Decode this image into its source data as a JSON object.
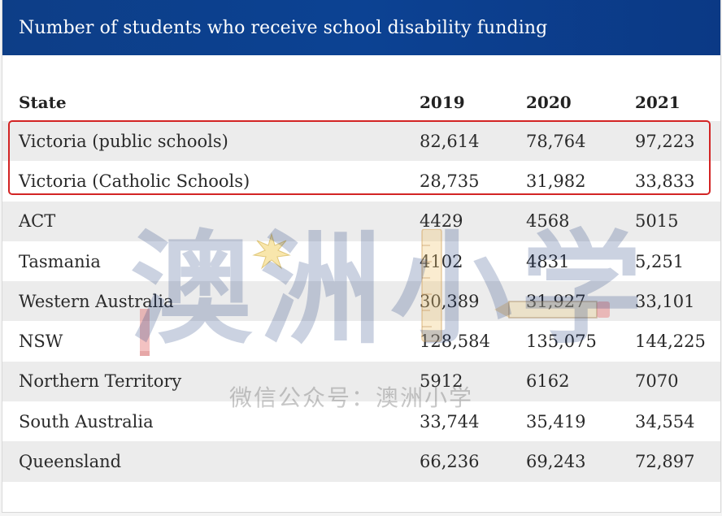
{
  "title": "Number of students who receive school disability funding",
  "headers": {
    "state": "State",
    "y2019": "2019",
    "y2020": "2020",
    "y2021": "2021"
  },
  "rows": [
    {
      "state": "Victoria (public schools)",
      "y2019": "82,614",
      "y2020": "78,764",
      "y2021": "97,223"
    },
    {
      "state": "Victoria (Catholic Schools)",
      "y2019": "28,735",
      "y2020": "31,982",
      "y2021": "33,833"
    },
    {
      "state": "ACT",
      "y2019": "4429",
      "y2020": "4568",
      "y2021": "5015"
    },
    {
      "state": "Tasmania",
      "y2019": "4102",
      "y2020": "4831",
      "y2021": "5,251"
    },
    {
      "state": "Western Australia",
      "y2019": "30,389",
      "y2020": "31,927",
      "y2021": "33,101"
    },
    {
      "state": "NSW",
      "y2019": "128,584",
      "y2020": "135,075",
      "y2021": "144,225"
    },
    {
      "state": "Northern Territory",
      "y2019": "5912",
      "y2020": "6162",
      "y2021": "7070"
    },
    {
      "state": "South Australia",
      "y2019": "33,744",
      "y2020": "35,419",
      "y2021": "34,554"
    },
    {
      "state": "Queensland",
      "y2019": "66,236",
      "y2020": "69,243",
      "y2021": "72,897"
    }
  ],
  "watermark": {
    "main": "澳洲小学",
    "sub": "微信公众号：澳洲小学"
  },
  "colors": {
    "title_bar": "#0c4293",
    "highlight": "#d32424",
    "stripe": "#ececec"
  }
}
